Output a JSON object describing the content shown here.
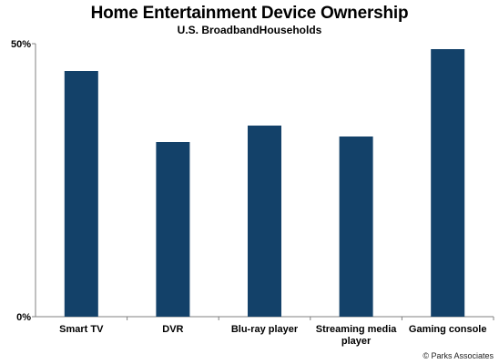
{
  "chart_data": {
    "type": "bar",
    "title": "Home Entertainment Device Ownership",
    "subtitle": "U.S. BroadbandHouseholds",
    "categories": [
      "Smart TV",
      "DVR",
      "Blu-ray player",
      "Streaming media player",
      "Gaming console"
    ],
    "category_lines": [
      [
        "Smart TV"
      ],
      [
        "DVR"
      ],
      [
        "Blu-ray player"
      ],
      [
        "Streaming media",
        "player"
      ],
      [
        "Gaming console"
      ]
    ],
    "values": [
      45,
      32,
      35,
      33,
      49
    ],
    "ylim": [
      0,
      50
    ],
    "yticks": [
      "0%",
      "50%"
    ],
    "ytick_values": [
      0,
      50
    ],
    "bar_color": "#134169",
    "grid": false,
    "legend": "none"
  },
  "footer": {
    "copyright": "© Parks Associates"
  }
}
